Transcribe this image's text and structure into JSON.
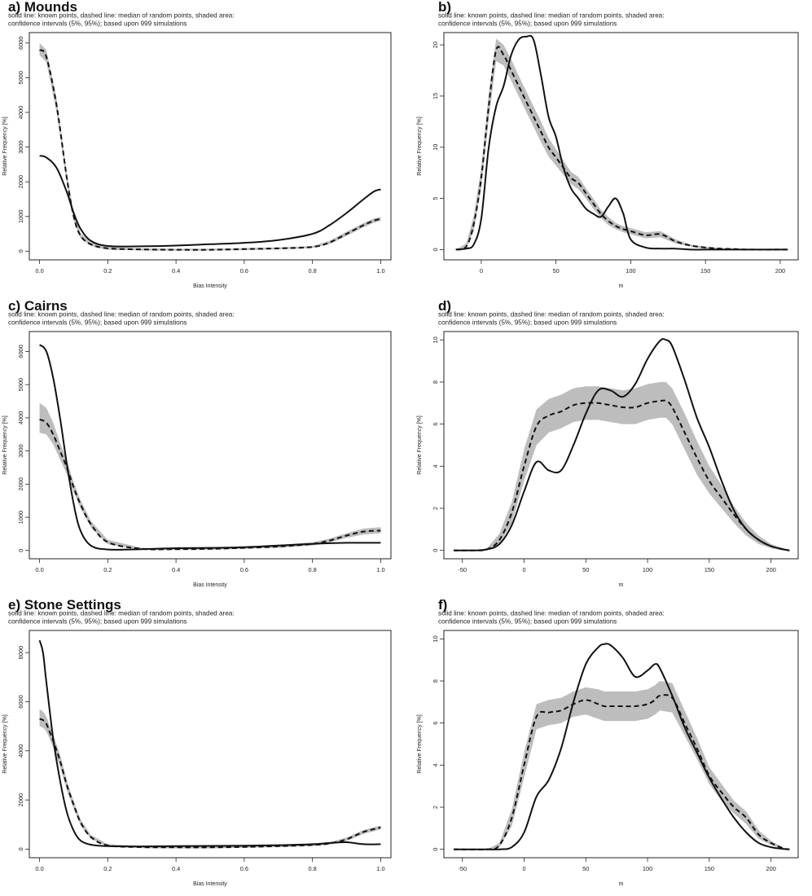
{
  "subtitle_line1": "solid line: known points, dashed line: median of random points, shaded area:",
  "subtitle_line2": "confidence intervals (5%, 95%); based upon 999 simulations",
  "chart_data": [
    {
      "type": "line",
      "panel": "a",
      "title": "a) Mounds",
      "xlabel": "Bias Intensity",
      "ylabel": "Relative Frequency [%]",
      "xlim": [
        -0.03,
        1.03
      ],
      "ylim": [
        -250,
        6300
      ],
      "xticks": [
        0,
        0.2,
        0.4,
        0.6,
        0.8,
        1
      ],
      "xticklabels": [
        "0.0",
        "0.2",
        "0.4",
        "0.6",
        "0.8",
        "1.0"
      ],
      "yticks": [
        0,
        1000,
        2000,
        3000,
        4000,
        5000,
        6000
      ],
      "yticklabels": [
        "0",
        "1000",
        "2000",
        "3000",
        "4000",
        "5000",
        "6000"
      ],
      "x": [
        0,
        0.02,
        0.05,
        0.08,
        0.1,
        0.12,
        0.15,
        0.2,
        0.3,
        0.4,
        0.5,
        0.6,
        0.7,
        0.8,
        0.85,
        0.9,
        0.95,
        0.98,
        1
      ],
      "series": [
        {
          "role": "known",
          "values": [
            2750,
            2700,
            2400,
            1700,
            1100,
            650,
            300,
            150,
            140,
            160,
            200,
            240,
            320,
            500,
            750,
            1100,
            1500,
            1720,
            1780
          ]
        },
        {
          "role": "median",
          "values": [
            5800,
            5600,
            4200,
            2100,
            1000,
            450,
            200,
            80,
            50,
            40,
            40,
            60,
            80,
            120,
            250,
            500,
            750,
            880,
            930
          ]
        },
        {
          "role": "ci_low",
          "values": [
            5650,
            5450,
            4000,
            1950,
            900,
            380,
            150,
            40,
            20,
            15,
            15,
            30,
            50,
            90,
            200,
            440,
            690,
            820,
            870
          ]
        },
        {
          "role": "ci_high",
          "values": [
            6000,
            5800,
            4400,
            2250,
            1100,
            520,
            250,
            120,
            80,
            70,
            70,
            90,
            110,
            150,
            300,
            560,
            810,
            940,
            990
          ]
        }
      ]
    },
    {
      "type": "line",
      "panel": "b",
      "title": "b)",
      "xlabel": "m",
      "ylabel": "Relative Frequency [%]",
      "xlim": [
        -25,
        212
      ],
      "ylim": [
        -1,
        21.2
      ],
      "xticks": [
        0,
        50,
        100,
        150,
        200
      ],
      "xticklabels": [
        "0",
        "50",
        "100",
        "150",
        "200"
      ],
      "yticks": [
        0,
        5,
        10,
        15,
        20
      ],
      "yticklabels": [
        "0",
        "5",
        "10",
        "15",
        "20"
      ],
      "x": [
        -17,
        -10,
        -5,
        0,
        5,
        10,
        15,
        20,
        25,
        30,
        35,
        40,
        45,
        50,
        55,
        60,
        65,
        70,
        75,
        80,
        85,
        90,
        95,
        100,
        110,
        120,
        130,
        140,
        150,
        160,
        170,
        180,
        205
      ],
      "series": [
        {
          "role": "known",
          "values": [
            0,
            0.1,
            0.5,
            3,
            10,
            14,
            16,
            19,
            20.5,
            20.8,
            20.5,
            17,
            13,
            11,
            8,
            6,
            5,
            4,
            3.5,
            3.2,
            4.2,
            5,
            3.5,
            1,
            0.2,
            0.1,
            0.1,
            0,
            0,
            0,
            0,
            0,
            0
          ]
        },
        {
          "role": "median",
          "values": [
            0,
            0.3,
            2.5,
            7,
            14,
            19.5,
            19,
            17.5,
            16,
            14.5,
            13,
            11.5,
            10,
            9,
            8,
            7,
            6.5,
            5.5,
            4.5,
            3.5,
            2.8,
            2.3,
            2,
            1.8,
            1.4,
            1.5,
            0.8,
            0.4,
            0.2,
            0.1,
            0.05,
            0,
            0
          ]
        },
        {
          "role": "ci_low",
          "values": [
            0,
            0.1,
            1.8,
            6,
            12.8,
            18.4,
            18,
            16.5,
            15,
            13.5,
            12,
            10.5,
            9.1,
            8.2,
            7.3,
            6.4,
            5.9,
            5,
            4,
            3.1,
            2.4,
            2,
            1.7,
            1.5,
            1.1,
            1.2,
            0.6,
            0.3,
            0.1,
            0.05,
            0,
            0,
            0
          ]
        },
        {
          "role": "ci_high",
          "values": [
            0,
            0.6,
            3.3,
            8,
            15.2,
            20.6,
            20,
            18.6,
            17,
            15.5,
            14,
            12.5,
            10.9,
            9.8,
            8.7,
            7.6,
            7.1,
            6,
            5,
            3.9,
            3.2,
            2.6,
            2.3,
            2.1,
            1.7,
            1.8,
            1,
            0.5,
            0.3,
            0.15,
            0.1,
            0.05,
            0
          ]
        }
      ]
    },
    {
      "type": "line",
      "panel": "c",
      "title": "c) Cairns",
      "xlabel": "Bias Intensity",
      "ylabel": "Relative Frequency [%]",
      "xlim": [
        -0.03,
        1.03
      ],
      "ylim": [
        -250,
        6600
      ],
      "xticks": [
        0,
        0.2,
        0.4,
        0.6,
        0.8,
        1
      ],
      "xticklabels": [
        "0.0",
        "0.2",
        "0.4",
        "0.6",
        "0.8",
        "1.0"
      ],
      "yticks": [
        0,
        1000,
        2000,
        3000,
        4000,
        5000,
        6000
      ],
      "yticklabels": [
        "0",
        "1000",
        "2000",
        "3000",
        "4000",
        "5000",
        "6000"
      ],
      "x": [
        0,
        0.02,
        0.04,
        0.06,
        0.08,
        0.1,
        0.12,
        0.15,
        0.2,
        0.3,
        0.4,
        0.5,
        0.6,
        0.7,
        0.8,
        0.85,
        0.9,
        0.95,
        1
      ],
      "series": [
        {
          "role": "known",
          "values": [
            6200,
            6000,
            5200,
            4000,
            2600,
            1400,
            600,
            150,
            30,
            40,
            70,
            80,
            100,
            150,
            200,
            220,
            230,
            230,
            230
          ]
        },
        {
          "role": "median",
          "values": [
            3950,
            3850,
            3500,
            3000,
            2500,
            1900,
            1400,
            800,
            250,
            50,
            40,
            50,
            80,
            120,
            200,
            300,
            450,
            570,
            600
          ]
        },
        {
          "role": "ci_low",
          "values": [
            3550,
            3500,
            3200,
            2750,
            2300,
            1750,
            1280,
            700,
            190,
            20,
            15,
            20,
            50,
            80,
            150,
            240,
            380,
            480,
            520
          ]
        },
        {
          "role": "ci_high",
          "values": [
            4450,
            4300,
            3850,
            3250,
            2700,
            2050,
            1520,
            900,
            320,
            80,
            60,
            80,
            110,
            160,
            250,
            360,
            520,
            660,
            700
          ]
        }
      ]
    },
    {
      "type": "line",
      "panel": "d",
      "title": "d)",
      "xlabel": "m",
      "ylabel": "Relative Frequency [%]",
      "xlim": [
        -65,
        222
      ],
      "ylim": [
        -0.4,
        10.4
      ],
      "xticks": [
        -50,
        0,
        50,
        100,
        150,
        200
      ],
      "xticklabels": [
        "-50",
        "0",
        "50",
        "100",
        "150",
        "200"
      ],
      "yticks": [
        0,
        2,
        4,
        6,
        8,
        10
      ],
      "yticklabels": [
        "0",
        "2",
        "4",
        "6",
        "8",
        "10"
      ],
      "x": [
        -57,
        -40,
        -30,
        -20,
        -10,
        0,
        10,
        20,
        30,
        40,
        50,
        60,
        70,
        80,
        90,
        100,
        110,
        115,
        120,
        130,
        140,
        150,
        160,
        170,
        180,
        190,
        200,
        210,
        215
      ],
      "series": [
        {
          "role": "known",
          "values": [
            0,
            0,
            0.05,
            0.3,
            1.2,
            2.8,
            4.2,
            3.8,
            3.8,
            5,
            6.5,
            7.6,
            7.6,
            7.3,
            7.9,
            9.1,
            9.95,
            10,
            9.7,
            8.1,
            6.3,
            4.9,
            3.3,
            1.9,
            1,
            0.5,
            0.2,
            0.05,
            0
          ]
        },
        {
          "role": "median",
          "values": [
            0,
            0,
            0.05,
            0.5,
            1.8,
            4,
            5.9,
            6.4,
            6.6,
            6.9,
            7,
            7,
            6.9,
            6.8,
            6.8,
            7,
            7.1,
            7.1,
            6.8,
            5.6,
            4.4,
            3.3,
            2.5,
            1.7,
            1,
            0.5,
            0.2,
            0.05,
            0
          ]
        },
        {
          "role": "ci_low",
          "values": [
            0,
            0,
            0,
            0.3,
            1.3,
            3.3,
            5,
            5.6,
            5.8,
            6.1,
            6.2,
            6.2,
            6.1,
            6,
            6,
            6.2,
            6.3,
            6.3,
            6,
            4.8,
            3.6,
            2.7,
            2,
            1.3,
            0.7,
            0.3,
            0.1,
            0,
            0
          ]
        },
        {
          "role": "ci_high",
          "values": [
            0,
            0,
            0.1,
            0.8,
            2.3,
            4.8,
            6.7,
            7.2,
            7.4,
            7.7,
            7.8,
            7.8,
            7.7,
            7.6,
            7.7,
            7.9,
            8,
            8,
            7.7,
            6.5,
            5.2,
            4,
            3.1,
            2.1,
            1.3,
            0.7,
            0.3,
            0.1,
            0
          ]
        }
      ]
    },
    {
      "type": "line",
      "panel": "e",
      "title": "e) Stone Settings",
      "xlabel": "Bias Intensity",
      "ylabel": "Relative Frequency [%]",
      "xlim": [
        -0.03,
        1.03
      ],
      "ylim": [
        -350,
        8900
      ],
      "xticks": [
        0,
        0.2,
        0.4,
        0.6,
        0.8,
        1
      ],
      "xticklabels": [
        "0.0",
        "0.2",
        "0.4",
        "0.6",
        "0.8",
        "1.0"
      ],
      "yticks": [
        0,
        2000,
        4000,
        6000,
        8000
      ],
      "yticklabels": [
        "0",
        "2000",
        "4000",
        "6000",
        "8000"
      ],
      "x": [
        0,
        0.01,
        0.02,
        0.04,
        0.06,
        0.08,
        0.1,
        0.12,
        0.15,
        0.2,
        0.3,
        0.4,
        0.5,
        0.6,
        0.7,
        0.8,
        0.85,
        0.9,
        0.95,
        1
      ],
      "series": [
        {
          "role": "known",
          "values": [
            8500,
            8000,
            6800,
            4500,
            2800,
            1500,
            750,
            350,
            180,
            120,
            110,
            120,
            130,
            140,
            160,
            200,
            250,
            280,
            200,
            200
          ]
        },
        {
          "role": "median",
          "values": [
            5300,
            5250,
            5100,
            4400,
            3600,
            2600,
            1800,
            1100,
            500,
            150,
            80,
            70,
            70,
            90,
            120,
            170,
            230,
            400,
            700,
            880
          ]
        },
        {
          "role": "ci_low",
          "values": [
            5000,
            4950,
            4800,
            4150,
            3350,
            2400,
            1650,
            980,
            420,
            100,
            40,
            30,
            30,
            50,
            80,
            120,
            180,
            330,
            620,
            800
          ]
        },
        {
          "role": "ci_high",
          "values": [
            5700,
            5600,
            5400,
            4650,
            3850,
            2800,
            1950,
            1220,
            580,
            200,
            120,
            110,
            110,
            130,
            160,
            220,
            280,
            470,
            780,
            960
          ]
        }
      ]
    },
    {
      "type": "line",
      "panel": "f",
      "title": "f)",
      "xlabel": "m",
      "ylabel": "Relative Frequency [%]",
      "xlim": [
        -65,
        222
      ],
      "ylim": [
        -0.4,
        10.4
      ],
      "xticks": [
        -50,
        0,
        50,
        100,
        150,
        200
      ],
      "xticklabels": [
        "-50",
        "0",
        "50",
        "100",
        "150",
        "200"
      ],
      "yticks": [
        0,
        2,
        4,
        6,
        8,
        10
      ],
      "yticklabels": [
        "0",
        "2",
        "4",
        "6",
        "8",
        "10"
      ],
      "x": [
        -57,
        -30,
        -20,
        -10,
        0,
        10,
        20,
        30,
        40,
        50,
        60,
        65,
        70,
        80,
        90,
        100,
        106,
        110,
        120,
        130,
        140,
        150,
        160,
        170,
        180,
        190,
        200,
        210,
        215
      ],
      "series": [
        {
          "role": "known",
          "values": [
            0,
            0,
            0,
            0.1,
            0.8,
            2.5,
            3.3,
            4.8,
            7,
            8.8,
            9.6,
            9.75,
            9.7,
            9.1,
            8.2,
            8.5,
            8.8,
            8.6,
            7.3,
            5.8,
            4.6,
            3.4,
            2.4,
            1.5,
            0.8,
            0.3,
            0.1,
            0.02,
            0
          ]
        },
        {
          "role": "median",
          "values": [
            0,
            0,
            0.2,
            1.5,
            4,
            6.3,
            6.5,
            6.6,
            6.9,
            7.1,
            6.9,
            6.8,
            6.8,
            6.8,
            6.8,
            6.9,
            7.1,
            7.3,
            7.2,
            6,
            4.8,
            3.5,
            2.7,
            2,
            1.5,
            0.7,
            0.3,
            0.05,
            0
          ]
        },
        {
          "role": "ci_low",
          "values": [
            0,
            0,
            0.1,
            1.1,
            3.4,
            5.7,
            5.9,
            6,
            6.3,
            6.4,
            6.2,
            6.1,
            6.1,
            6.1,
            6.1,
            6.2,
            6.4,
            6.6,
            6.5,
            5.4,
            4.3,
            3.1,
            2.3,
            1.7,
            1.2,
            0.5,
            0.2,
            0.02,
            0
          ]
        },
        {
          "role": "ci_high",
          "values": [
            0,
            0,
            0.3,
            1.9,
            4.6,
            6.9,
            7.1,
            7.2,
            7.5,
            7.7,
            7.6,
            7.5,
            7.5,
            7.5,
            7.5,
            7.6,
            7.8,
            8,
            7.9,
            6.6,
            5.3,
            3.9,
            3.1,
            2.3,
            1.8,
            0.9,
            0.4,
            0.08,
            0
          ]
        }
      ]
    }
  ]
}
